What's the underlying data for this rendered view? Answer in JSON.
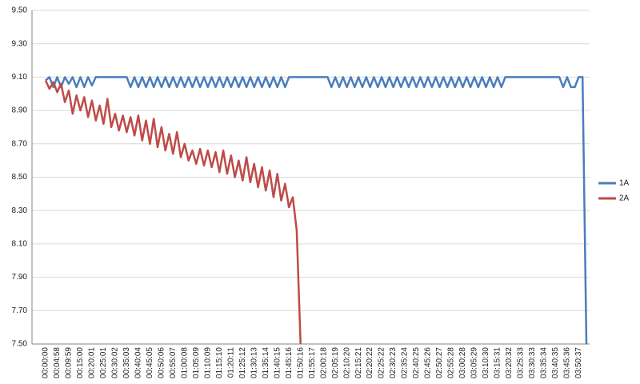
{
  "chart_data": {
    "type": "line",
    "categories": [
      "00:00:00",
      null,
      null,
      "00:04:58",
      null,
      null,
      "00:09:59",
      null,
      null,
      "00:15:00",
      null,
      null,
      "00:20:01",
      null,
      null,
      "00:25:01",
      null,
      null,
      "00:30:02",
      null,
      null,
      "00:35:03",
      null,
      null,
      "00:40:04",
      null,
      null,
      "00:45:05",
      null,
      null,
      "00:50:06",
      null,
      null,
      "00:55:07",
      null,
      null,
      "01:00:08",
      null,
      null,
      "01:05:09",
      null,
      null,
      "01:10:09",
      null,
      null,
      "01:15:10",
      null,
      null,
      "01:20:11",
      null,
      null,
      "01:25:12",
      null,
      null,
      "01:30:13",
      null,
      null,
      "01:35:14",
      null,
      null,
      "01:40:15",
      null,
      null,
      "01:45:16",
      null,
      null,
      "01:50:16",
      null,
      null,
      "01:55:17",
      null,
      null,
      "02:00:18",
      null,
      null,
      "02:05:19",
      null,
      null,
      "02:10:20",
      null,
      null,
      "02:15:21",
      null,
      null,
      "02:20:22",
      null,
      null,
      "02:25:22",
      null,
      null,
      "02:30:23",
      null,
      null,
      "02:35:24",
      null,
      null,
      "02:40:25",
      null,
      null,
      "02:45:26",
      null,
      null,
      "02:50:27",
      null,
      null,
      "02:55:28",
      null,
      null,
      "03:00:28",
      null,
      null,
      "03:05:29",
      null,
      null,
      "03:10:30",
      null,
      null,
      "03:15:31",
      null,
      null,
      "03:20:32",
      null,
      null,
      "03:25:33",
      null,
      null,
      "03:30:33",
      null,
      null,
      "03:35:34",
      null,
      null,
      "03:40:35",
      null,
      null,
      "03:45:36",
      null,
      null,
      "03:50:37",
      null,
      null
    ],
    "series": [
      {
        "name": "1A",
        "color": "#4a7ebb",
        "values": [
          9.08,
          9.1,
          9.04,
          9.1,
          9.04,
          9.1,
          9.06,
          9.1,
          9.04,
          9.1,
          9.04,
          9.1,
          9.05,
          9.1,
          9.1,
          9.1,
          9.1,
          9.1,
          9.1,
          9.1,
          9.1,
          9.1,
          9.04,
          9.1,
          9.04,
          9.1,
          9.04,
          9.1,
          9.04,
          9.1,
          9.04,
          9.1,
          9.04,
          9.1,
          9.04,
          9.1,
          9.04,
          9.1,
          9.04,
          9.1,
          9.04,
          9.1,
          9.04,
          9.1,
          9.04,
          9.1,
          9.04,
          9.1,
          9.04,
          9.1,
          9.04,
          9.1,
          9.04,
          9.1,
          9.04,
          9.1,
          9.04,
          9.1,
          9.04,
          9.1,
          9.04,
          9.1,
          9.04,
          9.1,
          9.1,
          9.1,
          9.1,
          9.1,
          9.1,
          9.1,
          9.1,
          9.1,
          9.1,
          9.1,
          9.04,
          9.1,
          9.04,
          9.1,
          9.04,
          9.1,
          9.04,
          9.1,
          9.04,
          9.1,
          9.04,
          9.1,
          9.04,
          9.1,
          9.04,
          9.1,
          9.04,
          9.1,
          9.04,
          9.1,
          9.04,
          9.1,
          9.04,
          9.1,
          9.04,
          9.1,
          9.04,
          9.1,
          9.04,
          9.1,
          9.04,
          9.1,
          9.04,
          9.1,
          9.04,
          9.1,
          9.04,
          9.1,
          9.04,
          9.1,
          9.04,
          9.1,
          9.04,
          9.1,
          9.04,
          9.1,
          9.1,
          9.1,
          9.1,
          9.1,
          9.1,
          9.1,
          9.1,
          9.1,
          9.1,
          9.1,
          9.1,
          9.1,
          9.1,
          9.1,
          9.04,
          9.1,
          9.04,
          9.04,
          9.1,
          9.1,
          7.5
        ]
      },
      {
        "name": "2A",
        "color": "#be4b48",
        "values": [
          9.08,
          9.03,
          9.07,
          9.01,
          9.06,
          8.95,
          9.02,
          8.88,
          8.99,
          8.9,
          8.98,
          8.86,
          8.96,
          8.84,
          8.93,
          8.82,
          8.97,
          8.8,
          8.88,
          8.78,
          8.87,
          8.77,
          8.86,
          8.75,
          8.87,
          8.72,
          8.84,
          8.7,
          8.85,
          8.68,
          8.8,
          8.66,
          8.76,
          8.64,
          8.77,
          8.62,
          8.7,
          8.6,
          8.66,
          8.58,
          8.67,
          8.57,
          8.66,
          8.56,
          8.65,
          8.53,
          8.66,
          8.52,
          8.63,
          8.5,
          8.6,
          8.48,
          8.62,
          8.47,
          8.58,
          8.44,
          8.56,
          8.42,
          8.54,
          8.38,
          8.52,
          8.36,
          8.46,
          8.32,
          8.38,
          8.18,
          7.5,
          null,
          null,
          null,
          null,
          null,
          null,
          null,
          null,
          null,
          null,
          null,
          null,
          null,
          null,
          null,
          null,
          null,
          null,
          null,
          null,
          null,
          null,
          null,
          null,
          null,
          null,
          null,
          null,
          null,
          null,
          null,
          null,
          null,
          null,
          null,
          null,
          null,
          null,
          null,
          null,
          null,
          null,
          null,
          null,
          null,
          null,
          null,
          null,
          null,
          null,
          null,
          null,
          null,
          null,
          null,
          null,
          null,
          null,
          null,
          null,
          null,
          null,
          null,
          null,
          null,
          null,
          null,
          null,
          null,
          null,
          null,
          null,
          null,
          null
        ]
      }
    ],
    "ylim": [
      7.5,
      9.5
    ],
    "yticks": [
      {
        "value": 7.5,
        "label": "7.50"
      },
      {
        "value": 7.7,
        "label": "7.70"
      },
      {
        "value": 7.9,
        "label": "7.90"
      },
      {
        "value": 8.1,
        "label": "8.10"
      },
      {
        "value": 8.3,
        "label": "8.30"
      },
      {
        "value": 8.5,
        "label": "8.50"
      },
      {
        "value": 8.7,
        "label": "8.70"
      },
      {
        "value": 8.9,
        "label": "8.90"
      },
      {
        "value": 9.1,
        "label": "9.10"
      },
      {
        "value": 9.3,
        "label": "9.30"
      },
      {
        "value": 9.5,
        "label": "9.50"
      }
    ],
    "grid": true,
    "legend": "right"
  }
}
